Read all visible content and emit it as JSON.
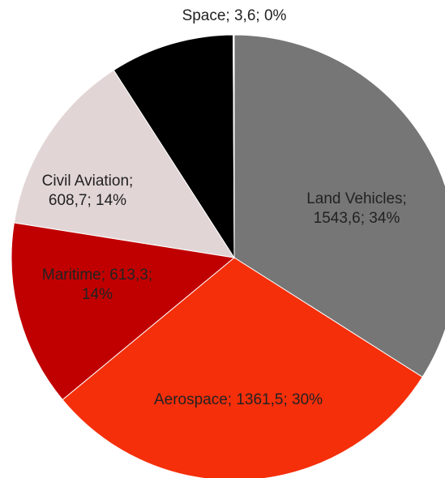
{
  "chart_data": {
    "type": "pie",
    "categories": [
      "Land Vehicles",
      "Aerospace",
      "Maritime",
      "Civil Aviation",
      null,
      "Space"
    ],
    "values": [
      1543.6,
      1361.5,
      613.3,
      608.7,
      409,
      3.6
    ],
    "value_labels": [
      [
        "Land Vehicles;",
        "1543,6; 34%"
      ],
      [
        "Aerospace; 1361,5; 30%"
      ],
      [
        "Maritime; 613,3;",
        "14%"
      ],
      [
        "Civil Aviation;",
        "608,7; 14%"
      ],
      null,
      [
        "Space; 3,6; 0%"
      ]
    ],
    "colors": [
      "#767676",
      "#f52f0a",
      "#c00000",
      "#e2d5d5",
      "#000000",
      "#ffffff"
    ]
  }
}
